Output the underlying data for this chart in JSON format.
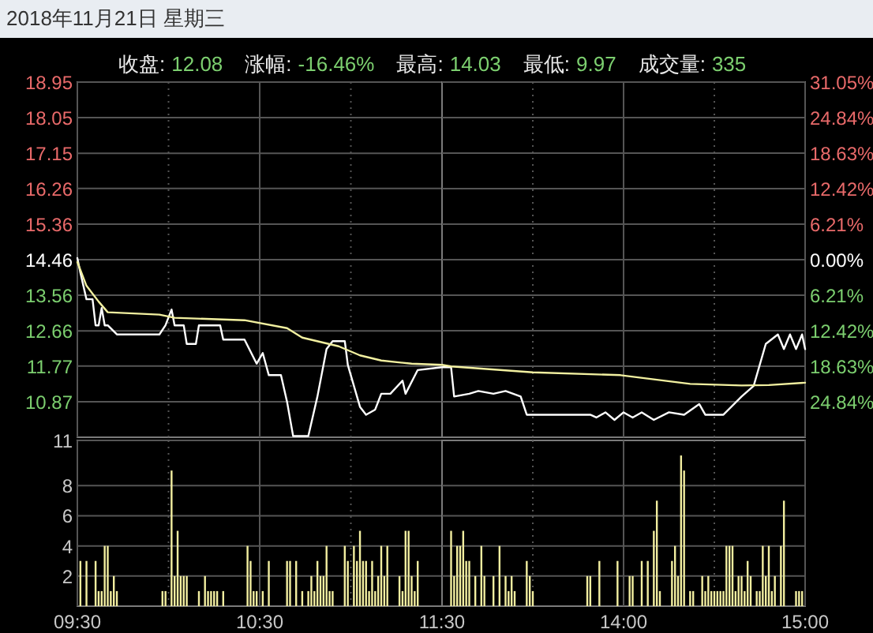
{
  "chart_data": [
    {
      "type": "line",
      "title": "2018年11月21日  星期三",
      "annotations": [
        "收盘:",
        "12.08",
        "涨幅:",
        "-16.46%",
        "最高:",
        "14.03",
        "最低:",
        "9.97",
        "成交量:",
        "335"
      ],
      "xlim": [
        "2018-11-21T09:30",
        "2018-11-21T11:30"
      ],
      "ylim": [
        9.97,
        18.95
      ],
      "yticks": [
        10.87,
        11.77,
        12.66,
        13.56,
        14.46,
        15.36,
        16.26,
        17.15,
        18.05,
        18.95
      ],
      "grid": true,
      "tick_labels": "y",
      "series": [
        {
          "color": "#ffffff",
          "x": [
            "2018-11-21T09:30",
            "2018-11-21T09:31",
            "2018-11-21T09:33",
            "2018-11-21T09:35",
            "2018-11-21T09:36",
            "2018-11-21T09:37",
            "2018-11-21T09:38",
            "2018-11-21T09:39",
            "2018-11-21T09:40",
            "2018-11-21T09:43",
            "2018-11-21T09:57",
            "2018-11-21T09:59",
            "2018-11-21T10:01",
            "2018-11-21T10:02",
            "2018-11-21T10:05",
            "2018-11-21T10:06",
            "2018-11-21T10:09",
            "2018-11-21T10:10",
            "2018-11-21T10:17",
            "2018-11-21T10:18",
            "2018-11-21T10:25",
            "2018-11-21T10:29",
            "2018-11-21T10:31",
            "2018-11-21T10:33",
            "2018-11-21T10:37",
            "2018-11-21T10:39",
            "2018-11-21T10:41",
            "2018-11-21T10:46",
            "2018-11-21T10:49",
            "2018-11-21T10:52",
            "2018-11-21T10:54",
            "2018-11-21T10:58",
            "2018-11-21T10:59",
            "2018-11-21T11:03",
            "2018-11-21T11:05",
            "2018-11-21T11:08",
            "2018-11-21T11:10",
            "2018-11-21T11:13",
            "2018-11-21T11:17",
            "2018-11-21T11:18",
            "2018-11-21T11:22",
            "2018-11-21T11:30"
          ],
          "values": [
            14.5,
            14.13,
            13.46,
            13.46,
            12.8,
            12.8,
            13.24,
            12.8,
            12.8,
            12.57,
            12.57,
            12.8,
            13.2,
            12.8,
            12.8,
            12.33,
            12.33,
            12.8,
            12.8,
            12.44,
            12.44,
            11.83,
            12.1,
            11.54,
            11.54,
            10.87,
            10.0,
            10.0,
            11.0,
            12.2,
            12.4,
            12.4,
            11.8,
            10.74,
            10.54,
            10.67,
            11.07,
            11.07,
            11.4,
            11.07,
            11.67,
            11.74
          ]
        },
        {
          "color": "#f2f0a0",
          "x": [
            "2018-11-21T09:30",
            "2018-11-21T09:33",
            "2018-11-21T09:37",
            "2018-11-21T09:40",
            "2018-11-21T09:57",
            "2018-11-21T10:02",
            "2018-11-21T10:25",
            "2018-11-21T10:39",
            "2018-11-21T10:44",
            "2018-11-21T10:56",
            "2018-11-21T11:03",
            "2018-11-21T11:10",
            "2018-11-21T11:20",
            "2018-11-21T11:30"
          ],
          "values": [
            14.4,
            13.8,
            13.4,
            13.13,
            13.07,
            12.99,
            12.93,
            12.73,
            12.49,
            12.27,
            12.04,
            11.91,
            11.83,
            11.8
          ]
        }
      ]
    },
    {
      "type": "line",
      "xlim": [
        "2018-11-21T13:00",
        "2018-11-21T15:00"
      ],
      "ylim": [
        9.97,
        18.95
      ],
      "y2lim": [
        -31.05,
        31.05
      ],
      "y2ticks": [
        {
          "value": -24.84,
          "label": "24.84%"
        },
        {
          "value": -18.63,
          "label": "18.63%"
        },
        {
          "value": -12.42,
          "label": "12.42%"
        },
        {
          "value": -6.21,
          "label": "6.21%"
        },
        {
          "value": 0,
          "label": "0.00%"
        },
        {
          "value": 6.21,
          "label": "6.21%"
        },
        {
          "value": 12.42,
          "label": "12.42%"
        },
        {
          "value": 18.63,
          "label": "18.63%"
        },
        {
          "value": 24.84,
          "label": "24.84%"
        },
        {
          "value": 31.05,
          "label": "31.05%"
        }
      ],
      "grid": true,
      "tick_labels": "y",
      "series": [
        {
          "color": "#ffffff",
          "x": [
            "2018-11-21T13:00",
            "2018-11-21T13:03",
            "2018-11-21T13:04",
            "2018-11-21T13:09",
            "2018-11-21T13:12",
            "2018-11-21T13:17",
            "2018-11-21T13:21",
            "2018-11-21T13:26",
            "2018-11-21T13:28",
            "2018-11-21T13:49",
            "2018-11-21T13:51",
            "2018-11-21T13:54",
            "2018-11-21T13:57",
            "2018-11-21T14:00",
            "2018-11-21T14:03",
            "2018-11-21T14:06",
            "2018-11-21T14:10",
            "2018-11-21T14:15",
            "2018-11-21T14:20",
            "2018-11-21T14:25",
            "2018-11-21T14:27",
            "2018-11-21T14:33",
            "2018-11-21T14:39",
            "2018-11-21T14:43",
            "2018-11-21T14:47",
            "2018-11-21T14:51",
            "2018-11-21T14:53",
            "2018-11-21T14:55",
            "2018-11-21T14:57",
            "2018-11-21T14:59",
            "2018-11-21T15:00"
          ],
          "values": [
            11.74,
            11.74,
            11.0,
            11.07,
            11.14,
            11.07,
            11.14,
            11.0,
            10.54,
            10.54,
            10.47,
            10.6,
            10.41,
            10.6,
            10.47,
            10.6,
            10.41,
            10.6,
            10.54,
            10.81,
            10.54,
            10.54,
            11.0,
            11.27,
            12.33,
            12.57,
            12.2,
            12.57,
            12.2,
            12.57,
            12.2
          ]
        },
        {
          "color": "#f2f0a0",
          "x": [
            "2018-11-21T13:00",
            "2018-11-21T13:03",
            "2018-11-21T13:30",
            "2018-11-21T13:59",
            "2018-11-21T14:22",
            "2018-11-21T14:39",
            "2018-11-21T14:48",
            "2018-11-21T15:00"
          ],
          "values": [
            11.8,
            11.76,
            11.61,
            11.54,
            11.32,
            11.28,
            11.29,
            11.35
          ]
        }
      ]
    },
    {
      "type": "bar",
      "xlim": [
        "2018-11-21T09:30",
        "2018-11-21T11:30"
      ],
      "xticks": [
        {
          "value": "2018-11-21T09:30",
          "label": "09:30"
        },
        {
          "value": "2018-11-21T10:00",
          "label": null
        },
        {
          "value": "2018-11-21T10:30",
          "label": "10:30"
        },
        {
          "value": "2018-11-21T11:00",
          "label": null
        },
        {
          "value": "2018-11-21T11:30",
          "label": "11:30"
        }
      ],
      "ylim": [
        0,
        11
      ],
      "yticks": [
        2,
        4,
        6,
        8,
        11
      ],
      "grid": true,
      "series": [
        {
          "color": "#f2eea0",
          "x": [
            "2018-11-21T09:31",
            "2018-11-21T09:33",
            "2018-11-21T09:36",
            "2018-11-21T09:37",
            "2018-11-21T09:38",
            "2018-11-21T09:39",
            "2018-11-21T09:40",
            "2018-11-21T09:41",
            "2018-11-21T09:42",
            "2018-11-21T09:43",
            "2018-11-21T09:58",
            "2018-11-21T09:59",
            "2018-11-21T10:01",
            "2018-11-21T10:02",
            "2018-11-21T10:03",
            "2018-11-21T10:04",
            "2018-11-21T10:05",
            "2018-11-21T10:06",
            "2018-11-21T10:10",
            "2018-11-21T10:12",
            "2018-11-21T10:13",
            "2018-11-21T10:14",
            "2018-11-21T10:15",
            "2018-11-21T10:16",
            "2018-11-21T10:18",
            "2018-11-21T10:26",
            "2018-11-21T10:27",
            "2018-11-21T10:28",
            "2018-11-21T10:29",
            "2018-11-21T10:31",
            "2018-11-21T10:33",
            "2018-11-21T10:39",
            "2018-11-21T10:40",
            "2018-11-21T10:42",
            "2018-11-21T10:44",
            "2018-11-21T10:46",
            "2018-11-21T10:47",
            "2018-11-21T10:48",
            "2018-11-21T10:49",
            "2018-11-21T10:50",
            "2018-11-21T10:51",
            "2018-11-21T10:52",
            "2018-11-21T10:53",
            "2018-11-21T10:54",
            "2018-11-21T10:58",
            "2018-11-21T10:59",
            "2018-11-21T11:01",
            "2018-11-21T11:02",
            "2018-11-21T11:03",
            "2018-11-21T11:04",
            "2018-11-21T11:05",
            "2018-11-21T11:06",
            "2018-11-21T11:07",
            "2018-11-21T11:08",
            "2018-11-21T11:09",
            "2018-11-21T11:10",
            "2018-11-21T11:11",
            "2018-11-21T11:12",
            "2018-11-21T11:16",
            "2018-11-21T11:17",
            "2018-11-21T11:18",
            "2018-11-21T11:19",
            "2018-11-21T11:20",
            "2018-11-21T11:21",
            "2018-11-21T11:22"
          ],
          "values": [
            3,
            3,
            3,
            1,
            1,
            4,
            4,
            1,
            2,
            1,
            1,
            1,
            9,
            2,
            5,
            2,
            2,
            2,
            1,
            2,
            1,
            1,
            1,
            1,
            1,
            4,
            3,
            1,
            1,
            1,
            3,
            3,
            3,
            3,
            1,
            1,
            2,
            1,
            3,
            2,
            2,
            4,
            1,
            1,
            4,
            3,
            4,
            3,
            5,
            3,
            3,
            1,
            3,
            1,
            2,
            4,
            2,
            4,
            2,
            1,
            5,
            5,
            2,
            1,
            3
          ]
        }
      ]
    },
    {
      "type": "bar",
      "xlim": [
        "2018-11-21T13:00",
        "2018-11-21T15:00"
      ],
      "xticks": [
        {
          "value": "2018-11-21T13:30",
          "label": null
        },
        {
          "value": "2018-11-21T14:00",
          "label": "14:00"
        },
        {
          "value": "2018-11-21T14:30",
          "label": null
        },
        {
          "value": "2018-11-21T15:00",
          "label": "15:00"
        }
      ],
      "ylim": [
        0,
        11
      ],
      "yticks": [
        {
          "value": 2,
          "label": null
        },
        {
          "value": 4,
          "label": null
        },
        {
          "value": 6,
          "label": null
        },
        {
          "value": 8,
          "label": null
        }
      ],
      "grid": true,
      "tick_labels": "x",
      "series": [
        {
          "color": "#f2eea0",
          "x": [
            "2018-11-21T13:03",
            "2018-11-21T13:04",
            "2018-11-21T13:05",
            "2018-11-21T13:06",
            "2018-11-21T13:07",
            "2018-11-21T13:08",
            "2018-11-21T13:09",
            "2018-11-21T13:11",
            "2018-11-21T13:13",
            "2018-11-21T13:14",
            "2018-11-21T13:17",
            "2018-11-21T13:19",
            "2018-11-21T13:21",
            "2018-11-21T13:22",
            "2018-11-21T13:23",
            "2018-11-21T13:24",
            "2018-11-21T13:28",
            "2018-11-21T13:29",
            "2018-11-21T13:30",
            "2018-11-21T13:48",
            "2018-11-21T13:49",
            "2018-11-21T13:52",
            "2018-11-21T13:58",
            "2018-11-21T14:02",
            "2018-11-21T14:03",
            "2018-11-21T14:06",
            "2018-11-21T14:08",
            "2018-11-21T14:10",
            "2018-11-21T14:11",
            "2018-11-21T14:12",
            "2018-11-21T14:16",
            "2018-11-21T14:17",
            "2018-11-21T14:18",
            "2018-11-21T14:19",
            "2018-11-21T14:20",
            "2018-11-21T14:22",
            "2018-11-21T14:23",
            "2018-11-21T14:26",
            "2018-11-21T14:27",
            "2018-11-21T14:28",
            "2018-11-21T14:29",
            "2018-11-21T14:30",
            "2018-11-21T14:31",
            "2018-11-21T14:32",
            "2018-11-21T14:33",
            "2018-11-21T14:34",
            "2018-11-21T14:35",
            "2018-11-21T14:36",
            "2018-11-21T14:37",
            "2018-11-21T14:38",
            "2018-11-21T14:39",
            "2018-11-21T14:40",
            "2018-11-21T14:41",
            "2018-11-21T14:42",
            "2018-11-21T14:44",
            "2018-11-21T14:45",
            "2018-11-21T14:46",
            "2018-11-21T14:47",
            "2018-11-21T14:48",
            "2018-11-21T14:49",
            "2018-11-21T14:50",
            "2018-11-21T14:52",
            "2018-11-21T14:53",
            "2018-11-21T14:57",
            "2018-11-21T14:58",
            "2018-11-21T14:59"
          ],
          "values": [
            5,
            2,
            4,
            4,
            5,
            3,
            3,
            2,
            4,
            2,
            2,
            4,
            2,
            1,
            2,
            1,
            3,
            2,
            1,
            2,
            2,
            3,
            3,
            2,
            2,
            3,
            3,
            5,
            7,
            1,
            3,
            4,
            2,
            10,
            9,
            1,
            1,
            2,
            1,
            2,
            1,
            1,
            1,
            1,
            1,
            4,
            4,
            4,
            1,
            2,
            2,
            1,
            3,
            2,
            1,
            1,
            4,
            2,
            4,
            1,
            2,
            4,
            7,
            1,
            1,
            1
          ]
        }
      ]
    }
  ]
}
